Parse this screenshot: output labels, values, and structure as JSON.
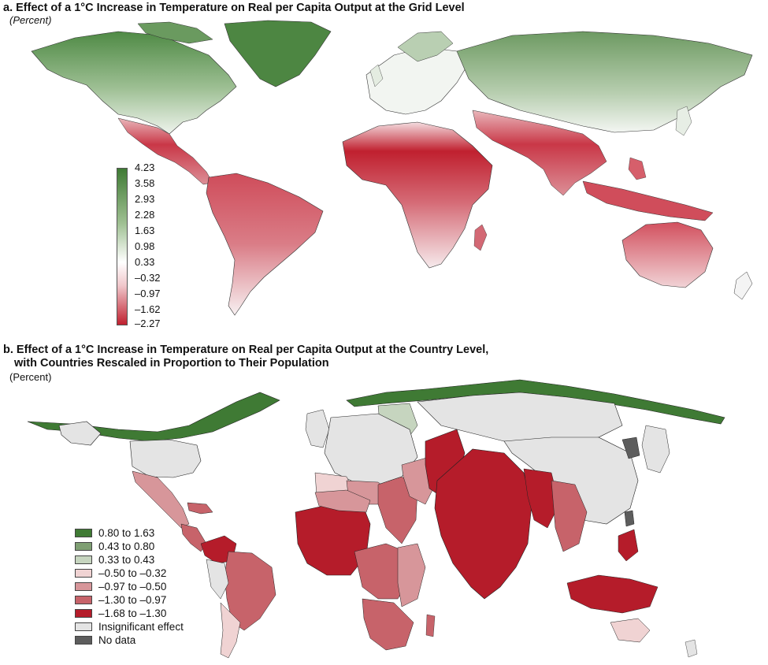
{
  "panel_a": {
    "title": "a. Effect of a 1°C Increase in Temperature on Real per Capita Output at the Grid Level",
    "unit": "(Percent)",
    "colorbar": {
      "labels": [
        "4.23",
        "3.58",
        "2.93",
        "2.28",
        "1.63",
        "0.98",
        "0.33",
        "–0.32",
        "–0.97",
        "–1.62",
        "–2.27"
      ],
      "top_color": "#3f7a34",
      "mid_color": "#ffffff",
      "bottom_color": "#c0202f"
    }
  },
  "panel_b": {
    "title_line1": "b. Effect of a 1°C Increase in Temperature on Real per Capita Output at the Country Level,",
    "title_line2": "with Countries Rescaled in Proportion to Their Population",
    "unit": "(Percent)",
    "legend": [
      {
        "label": "0.80 to 1.63",
        "color": "#3f7a34"
      },
      {
        "label": "0.43 to 0.80",
        "color": "#7f9f73"
      },
      {
        "label": "0.33 to 0.43",
        "color": "#c6d5bf"
      },
      {
        "label": "–0.50 to –0.32",
        "color": "#f0d3d3"
      },
      {
        "label": "–0.97 to –0.50",
        "color": "#d7969a"
      },
      {
        "label": "–1.30 to –0.97",
        "color": "#c7636a"
      },
      {
        "label": "–1.68 to –1.30",
        "color": "#b51c2a"
      },
      {
        "label": "Insignificant effect",
        "color": "#e4e4e4"
      },
      {
        "label": "No data",
        "color": "#5d5d5d"
      }
    ]
  }
}
